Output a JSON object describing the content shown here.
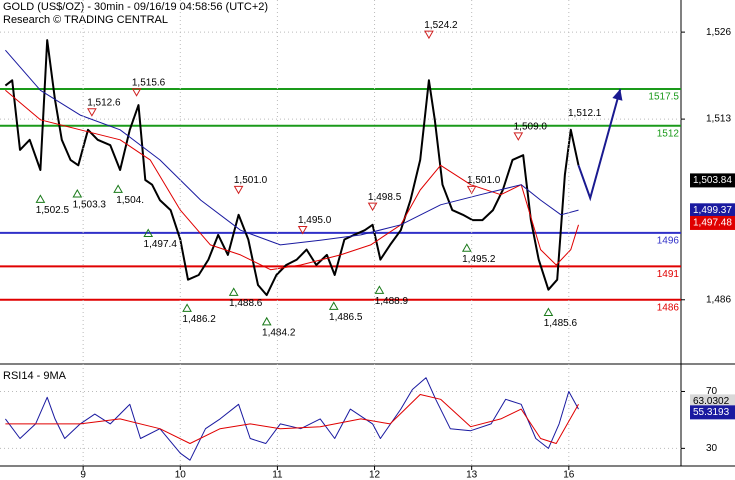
{
  "chart_data": [
    {
      "type": "line",
      "title": "GOLD (US$/OZ) - 30min - 09/16/19 04:58:56 (UTC+2)",
      "subtitle": "Research © TRADING CENTRAL",
      "ylim": [
        1476.7,
        1530.8
      ],
      "yticks": [
        {
          "value": 1486,
          "label": "1,486"
        },
        {
          "value": 1513,
          "label": "1,513"
        },
        {
          "value": 1526,
          "label": "1,526"
        }
      ],
      "grid": true,
      "series": [
        {
          "color": "#000000",
          "width": 2,
          "x": [
            0.2,
            0.27,
            0.35,
            0.45,
            0.56,
            0.63,
            0.71,
            0.78,
            0.87,
            0.95,
            1.05,
            1.15,
            1.28,
            1.38,
            1.48,
            1.57,
            1.64,
            1.71,
            1.79,
            1.9,
            2.0,
            2.08,
            2.19,
            2.29,
            2.39,
            2.49,
            2.6,
            2.7,
            2.8,
            2.89,
            2.99,
            3.09,
            3.2,
            3.3,
            3.4,
            3.51,
            3.59,
            3.69,
            3.79,
            3.9,
            3.98,
            4.06,
            4.16,
            4.27,
            4.37,
            4.47,
            4.56,
            4.62,
            4.7,
            4.8,
            4.91,
            5.01,
            5.11,
            5.22,
            5.32,
            5.42,
            5.53,
            5.61,
            5.69,
            5.79,
            5.88,
            5.96,
            6.02,
            6.1
          ],
          "values": [
            1518,
            1518.8,
            1508.4,
            1509.9,
            1505.4,
            1524.8,
            1515.9,
            1509.9,
            1506.9,
            1506.1,
            1511.4,
            1509.9,
            1509.1,
            1505.4,
            1511.4,
            1515.1,
            1503.9,
            1503.2,
            1500.9,
            1499.4,
            1495,
            1489,
            1489.7,
            1492,
            1495.7,
            1492.7,
            1498.7,
            1495,
            1488.2,
            1486.7,
            1489.7,
            1491.2,
            1492,
            1493.5,
            1491.2,
            1492.7,
            1489.7,
            1495,
            1495.7,
            1496.4,
            1497.2,
            1492,
            1494.2,
            1496.4,
            1500.9,
            1506.9,
            1518.8,
            1512.9,
            1503.2,
            1499.4,
            1498.7,
            1497.9,
            1497.9,
            1499.4,
            1502.4,
            1506.9,
            1507.6,
            1497.9,
            1492,
            1487.5,
            1489,
            1504.7,
            1511.4,
            1506.1
          ]
        },
        {
          "color": "#e00000",
          "width": 1,
          "x": [
            0.2,
            0.56,
            0.97,
            1.38,
            1.69,
            2.0,
            2.31,
            2.62,
            2.93,
            3.24,
            3.65,
            3.96,
            4.27,
            4.47,
            4.68,
            4.99,
            5.3,
            5.51,
            5.71,
            5.87,
            6.02,
            6.1
          ],
          "values": [
            1517.3,
            1512.9,
            1511.4,
            1509.9,
            1506.9,
            1499.4,
            1494.2,
            1492.7,
            1490.5,
            1491.2,
            1492.7,
            1494.2,
            1497.2,
            1502.4,
            1506.1,
            1503.2,
            1501.7,
            1503.2,
            1493.5,
            1491.2,
            1493.5,
            1497.2
          ]
        },
        {
          "color": "#1a1aa0",
          "width": 1,
          "x": [
            0.2,
            0.56,
            0.97,
            1.38,
            1.79,
            2.21,
            2.62,
            3.03,
            3.44,
            3.86,
            4.27,
            4.68,
            5.09,
            5.51,
            5.71,
            5.92,
            6.1
          ],
          "values": [
            1523.3,
            1517.3,
            1513.6,
            1511.4,
            1506.9,
            1500.9,
            1496.4,
            1494.2,
            1494.9,
            1495.7,
            1497.2,
            1500.2,
            1501.7,
            1503.2,
            1500.9,
            1498.7,
            1499.4
          ]
        }
      ],
      "levels": [
        {
          "value": 1517.5,
          "color": "#1a9a1a"
        },
        {
          "value": 1512,
          "color": "#1a9a1a"
        },
        {
          "value": 1496,
          "color": "#3030c8"
        },
        {
          "value": 1491,
          "color": "#e00000"
        },
        {
          "value": 1486,
          "color": "#e00000"
        }
      ],
      "annotations": [
        {
          "x": 0.56,
          "value": 1502.5,
          "label": "1,502.5",
          "kind": "up"
        },
        {
          "x": 0.94,
          "value": 1503.3,
          "label": "1,503.3",
          "kind": "up"
        },
        {
          "x": 1.09,
          "value": 1512.6,
          "label": "1,512.6",
          "kind": "down"
        },
        {
          "x": 1.55,
          "value": 1515.6,
          "label": "1,515.6",
          "kind": "down"
        },
        {
          "x": 1.36,
          "value": 1504,
          "label": "1,504.",
          "kind": "up"
        },
        {
          "x": 1.67,
          "value": 1497.4,
          "label": "1,497.4",
          "kind": "up"
        },
        {
          "x": 2.07,
          "value": 1486.2,
          "label": "1,486.2",
          "kind": "up"
        },
        {
          "x": 2.6,
          "value": 1501.0,
          "label": "1,501.0",
          "kind": "down"
        },
        {
          "x": 2.55,
          "value": 1488.6,
          "label": "1,488.6",
          "kind": "up"
        },
        {
          "x": 2.89,
          "value": 1484.2,
          "label": "1,484.2",
          "kind": "up"
        },
        {
          "x": 3.26,
          "value": 1495.0,
          "label": "1,495.0",
          "kind": "down"
        },
        {
          "x": 3.58,
          "value": 1486.5,
          "label": "1,486.5",
          "kind": "up"
        },
        {
          "x": 3.98,
          "value": 1498.5,
          "label": "1,498.5",
          "kind": "down"
        },
        {
          "x": 4.05,
          "value": 1488.9,
          "label": "1,488.9",
          "kind": "up"
        },
        {
          "x": 4.56,
          "value": 1524.2,
          "label": "1,524.2",
          "kind": "down"
        },
        {
          "x": 5.0,
          "value": 1501.0,
          "label": "1,501.0",
          "kind": "down"
        },
        {
          "x": 4.95,
          "value": 1495.2,
          "label": "1,495.2",
          "kind": "up"
        },
        {
          "x": 5.48,
          "value": 1509.0,
          "label": "1,509.0",
          "kind": "down"
        },
        {
          "x": 5.79,
          "value": 1485.6,
          "label": "1,485.6",
          "kind": "up"
        },
        {
          "x": 6.04,
          "value": 1512.1,
          "label": "1,512.1"
        }
      ],
      "forecast": {
        "color": "#1a1a90",
        "x": [
          6.1,
          6.22,
          6.53
        ],
        "values": [
          1506.1,
          1501.2,
          1517.5
        ]
      },
      "tags": [
        {
          "value": 1503.84,
          "label": "1,503.84",
          "color": "#000000"
        },
        {
          "value": 1499.37,
          "label": "1,499.37",
          "color": "#1a1aa0"
        },
        {
          "value": 1497.48,
          "label": "1,497.48",
          "color": "#e00000"
        }
      ]
    },
    {
      "type": "line",
      "title": "RSI14 - 9MA",
      "ylim": [
        17.6,
        86.5
      ],
      "yticks": [
        30,
        70
      ],
      "grid": true,
      "xlim": [
        0.144,
        7.155
      ],
      "xticks": [
        {
          "value": 1,
          "label": "9"
        },
        {
          "value": 2,
          "label": "10"
        },
        {
          "value": 3,
          "label": "11"
        },
        {
          "value": 4,
          "label": "12"
        },
        {
          "value": 5,
          "label": "13"
        },
        {
          "value": 6,
          "label": "16"
        }
      ],
      "series": [
        {
          "color": "#1a1aa0",
          "width": 1,
          "x": [
            0.2,
            0.35,
            0.51,
            0.63,
            0.71,
            0.81,
            0.97,
            1.12,
            1.28,
            1.48,
            1.59,
            1.79,
            2.0,
            2.1,
            2.26,
            2.41,
            2.6,
            2.72,
            2.88,
            3.03,
            3.24,
            3.44,
            3.59,
            3.75,
            3.98,
            4.06,
            4.27,
            4.39,
            4.53,
            4.63,
            4.78,
            4.99,
            5.2,
            5.35,
            5.51,
            5.66,
            5.79,
            5.9,
            6.0,
            6.1
          ],
          "values": [
            50.7,
            36.9,
            47.2,
            65.9,
            50.7,
            36.9,
            47.2,
            54.1,
            47.2,
            61,
            36.9,
            43.8,
            26.6,
            21.7,
            43.8,
            50.7,
            61,
            36.9,
            33.4,
            47.2,
            43.8,
            50.7,
            36.9,
            57.6,
            47.2,
            36.9,
            57.6,
            71.4,
            79.7,
            64.5,
            43.8,
            42.4,
            47.2,
            64.5,
            61,
            36.9,
            30,
            47.2,
            70,
            57.6
          ]
        },
        {
          "color": "#e00000",
          "width": 1,
          "x": [
            0.2,
            0.56,
            0.97,
            1.38,
            1.79,
            2.1,
            2.41,
            2.72,
            3.03,
            3.44,
            3.86,
            4.16,
            4.47,
            4.68,
            4.99,
            5.3,
            5.51,
            5.71,
            5.87,
            6.1
          ],
          "values": [
            47.2,
            47.2,
            47.2,
            50.7,
            43.8,
            33.4,
            43.8,
            47.2,
            43.8,
            45.2,
            50.7,
            47.2,
            67.9,
            64.5,
            45.2,
            50.7,
            57.6,
            36.9,
            33.4,
            61
          ]
        }
      ],
      "tags": [
        {
          "value": 63.0302,
          "color": "#d8d8d8"
        },
        {
          "value": 55.3193,
          "color": "#1a1aa0"
        }
      ]
    }
  ]
}
